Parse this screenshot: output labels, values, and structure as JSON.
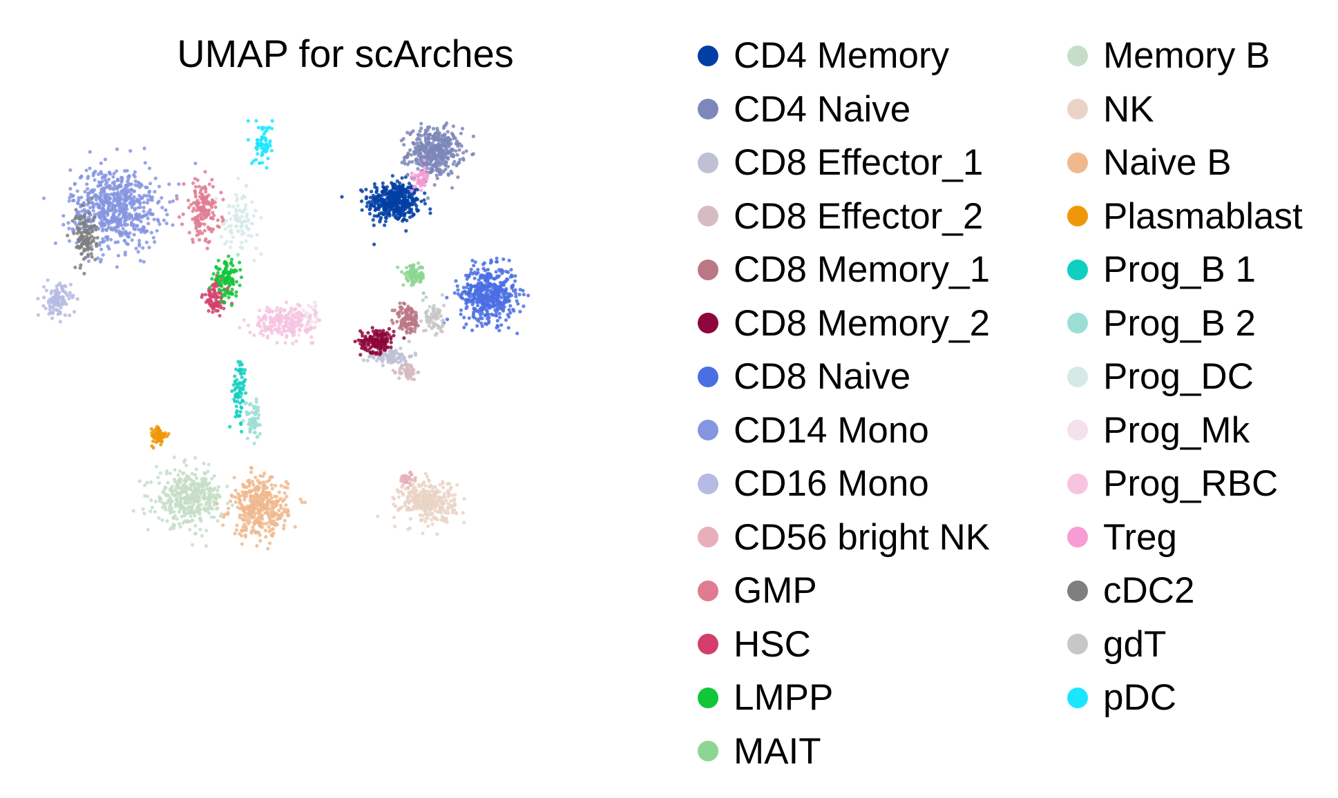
{
  "chart_data": {
    "type": "scatter",
    "title": "UMAP for scArches",
    "xlabel": "",
    "ylabel": "",
    "grid": false,
    "axes_visible": false,
    "legend_placement": "right",
    "series": [
      {
        "name": "CD4 Memory",
        "color": "#023fa5",
        "clusters": [
          {
            "x": 6.1,
            "y": 8.2,
            "sx": 0.7,
            "sy": 0.6,
            "n": 420
          }
        ]
      },
      {
        "name": "CD4 Naive",
        "color": "#7d87b9",
        "clusters": [
          {
            "x": 7.3,
            "y": 9.8,
            "sx": 0.7,
            "sy": 0.7,
            "n": 420
          }
        ]
      },
      {
        "name": "CD8 Effector_1",
        "color": "#bec1d4",
        "clusters": [
          {
            "x": 6.0,
            "y": 3.2,
            "sx": 0.6,
            "sy": 0.25,
            "n": 90
          }
        ]
      },
      {
        "name": "CD8 Effector_2",
        "color": "#d6bcc0",
        "clusters": [
          {
            "x": 6.5,
            "y": 2.7,
            "sx": 0.25,
            "sy": 0.25,
            "n": 60
          }
        ]
      },
      {
        "name": "CD8 Memory_1",
        "color": "#bb7784",
        "clusters": [
          {
            "x": 6.5,
            "y": 4.4,
            "sx": 0.35,
            "sy": 0.45,
            "n": 110
          }
        ]
      },
      {
        "name": "CD8 Memory_2",
        "color": "#8e063b",
        "clusters": [
          {
            "x": 5.6,
            "y": 3.7,
            "sx": 0.45,
            "sy": 0.35,
            "n": 160
          }
        ]
      },
      {
        "name": "CD8 Naive",
        "color": "#4a6fe3",
        "clusters": [
          {
            "x": 8.9,
            "y": 5.2,
            "sx": 0.75,
            "sy": 0.8,
            "n": 480
          }
        ]
      },
      {
        "name": "CD14 Mono",
        "color": "#8595e1",
        "clusters": [
          {
            "x": -2.2,
            "y": 8.0,
            "sx": 1.2,
            "sy": 1.2,
            "n": 650
          }
        ]
      },
      {
        "name": "CD16 Mono",
        "color": "#b5bbe3",
        "clusters": [
          {
            "x": -3.9,
            "y": 5.0,
            "sx": 0.35,
            "sy": 0.5,
            "n": 110
          }
        ]
      },
      {
        "name": "CD56 bright NK",
        "color": "#e6afb9",
        "clusters": [
          {
            "x": 6.5,
            "y": -0.8,
            "sx": 0.25,
            "sy": 0.2,
            "n": 40
          }
        ]
      },
      {
        "name": "GMP",
        "color": "#e07b91",
        "clusters": [
          {
            "x": 0.4,
            "y": 7.9,
            "sx": 0.5,
            "sy": 0.9,
            "n": 150
          }
        ]
      },
      {
        "name": "HSC",
        "color": "#d33f6a",
        "clusters": [
          {
            "x": 0.8,
            "y": 5.1,
            "sx": 0.35,
            "sy": 0.5,
            "n": 80
          }
        ]
      },
      {
        "name": "LMPP",
        "color": "#11c638",
        "clusters": [
          {
            "x": 1.1,
            "y": 5.7,
            "sx": 0.35,
            "sy": 0.5,
            "n": 110
          }
        ]
      },
      {
        "name": "MAIT",
        "color": "#8dd593",
        "clusters": [
          {
            "x": 6.7,
            "y": 5.8,
            "sx": 0.3,
            "sy": 0.3,
            "n": 90
          }
        ]
      },
      {
        "name": "Memory B",
        "color": "#c6dec7",
        "clusters": [
          {
            "x": 0.0,
            "y": -1.4,
            "sx": 0.9,
            "sy": 0.8,
            "n": 380
          }
        ]
      },
      {
        "name": "NK",
        "color": "#ead3c6",
        "clusters": [
          {
            "x": 7.1,
            "y": -1.5,
            "sx": 0.75,
            "sy": 0.6,
            "n": 320
          }
        ]
      },
      {
        "name": "Naive B",
        "color": "#f0b98d",
        "clusters": [
          {
            "x": 2.1,
            "y": -1.7,
            "sx": 0.75,
            "sy": 0.85,
            "n": 380
          }
        ]
      },
      {
        "name": "Plasmablast",
        "color": "#ef9708",
        "clusters": [
          {
            "x": -0.9,
            "y": 0.6,
            "sx": 0.22,
            "sy": 0.3,
            "n": 55
          }
        ]
      },
      {
        "name": "Prog_B 1",
        "color": "#0fcfc0",
        "clusters": [
          {
            "x": 1.5,
            "y": 2.0,
            "sx": 0.2,
            "sy": 1.0,
            "n": 70
          }
        ]
      },
      {
        "name": "Prog_B 2",
        "color": "#9cded6",
        "clusters": [
          {
            "x": 1.9,
            "y": 1.2,
            "sx": 0.2,
            "sy": 0.6,
            "n": 60
          }
        ]
      },
      {
        "name": "Prog_DC",
        "color": "#d5eae7",
        "clusters": [
          {
            "x": 1.5,
            "y": 7.6,
            "sx": 0.5,
            "sy": 0.8,
            "n": 90
          }
        ]
      },
      {
        "name": "Prog_Mk",
        "color": "#f3e1eb",
        "clusters": [
          {
            "x": 3.5,
            "y": 4.5,
            "sx": 0.5,
            "sy": 0.4,
            "n": 40
          }
        ]
      },
      {
        "name": "Prog_RBC",
        "color": "#f6c4e1",
        "clusters": [
          {
            "x": 2.8,
            "y": 4.3,
            "sx": 0.8,
            "sy": 0.45,
            "n": 220
          }
        ]
      },
      {
        "name": "Treg",
        "color": "#f79cd4",
        "clusters": [
          {
            "x": 6.9,
            "y": 8.9,
            "sx": 0.25,
            "sy": 0.35,
            "n": 45
          }
        ]
      },
      {
        "name": "cDC2",
        "color": "#7f7f7f",
        "clusters": [
          {
            "x": -3.1,
            "y": 7.1,
            "sx": 0.3,
            "sy": 0.8,
            "n": 120
          }
        ]
      },
      {
        "name": "gdT",
        "color": "#c7c7c7",
        "clusters": [
          {
            "x": 7.3,
            "y": 4.4,
            "sx": 0.25,
            "sy": 0.55,
            "n": 70
          }
        ]
      },
      {
        "name": "pDC",
        "color": "#1ce6ff",
        "clusters": [
          {
            "x": 2.2,
            "y": 10.1,
            "sx": 0.25,
            "sy": 0.6,
            "n": 70
          }
        ]
      }
    ],
    "xlim": [
      -4.8,
      10.4
    ],
    "ylim": [
      -3.6,
      11.6
    ]
  }
}
